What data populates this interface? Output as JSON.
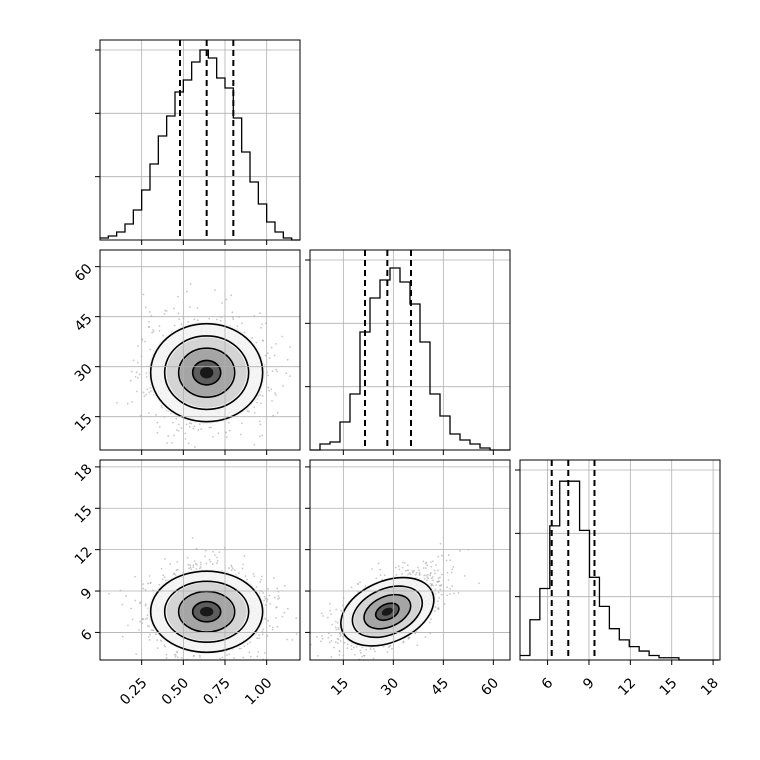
{
  "chart_data": {
    "type": "corner",
    "parameters": [
      {
        "index": 0,
        "range": [
          0.0,
          1.2
        ],
        "ticks": [
          0.25,
          0.5,
          0.75,
          1.0
        ],
        "tick_labels": [
          "0.25",
          "0.50",
          "0.75",
          "1.00"
        ],
        "quantiles": [
          0.48,
          0.64,
          0.8
        ],
        "center": 0.64,
        "sd": 0.16
      },
      {
        "index": 1,
        "range": [
          5,
          65
        ],
        "ticks": [
          15,
          30,
          45,
          60
        ],
        "tick_labels": [
          "15",
          "30",
          "45",
          "60"
        ],
        "quantiles": [
          21.5,
          28.2,
          35.3
        ],
        "center": 28.2,
        "sd": 7.0
      },
      {
        "index": 2,
        "range": [
          4,
          18.5
        ],
        "ticks": [
          6,
          9,
          12,
          15,
          18
        ],
        "tick_labels": [
          "6",
          "9",
          "12",
          "15",
          "18"
        ],
        "quantiles": [
          6.3,
          7.5,
          9.4
        ],
        "center": 7.5,
        "sd": 1.4
      }
    ],
    "histograms": [
      {
        "param": 0,
        "bin_edges": [
          0.0,
          0.05,
          0.1,
          0.15,
          0.2,
          0.25,
          0.3,
          0.35,
          0.4,
          0.45,
          0.5,
          0.55,
          0.6,
          0.65,
          0.7,
          0.75,
          0.8,
          0.85,
          0.9,
          0.95,
          1.0,
          1.05,
          1.1,
          1.15,
          1.2
        ],
        "counts": [
          1,
          2,
          4,
          8,
          15,
          25,
          38,
          52,
          62,
          74,
          80,
          89,
          95,
          91,
          81,
          76,
          61,
          44,
          29,
          18,
          9,
          4,
          1,
          0
        ],
        "ylim": [
          0,
          95
        ]
      },
      {
        "param": 1,
        "bin_edges": [
          5,
          8,
          11,
          14,
          17,
          20,
          23,
          26,
          29,
          32,
          35,
          38,
          41,
          44,
          47,
          50,
          53,
          56,
          59,
          62,
          65
        ],
        "counts": [
          0,
          3,
          4,
          14,
          28,
          59,
          76,
          85,
          91,
          84,
          73,
          54,
          28,
          17,
          8,
          5,
          3,
          1,
          0,
          0
        ],
        "ylim": [
          0,
          95
        ]
      },
      {
        "param": 2,
        "bin_edges": [
          4,
          4.72,
          5.44,
          6.16,
          6.88,
          7.6,
          8.32,
          9.04,
          9.76,
          10.48,
          11.2,
          11.92,
          12.64,
          13.36,
          14.08,
          14.8,
          15.52,
          16.24,
          16.96,
          17.68,
          18.4
        ],
        "counts": [
          2,
          18,
          32,
          60,
          80,
          80,
          58,
          37,
          24,
          14,
          9,
          6,
          4,
          2,
          1,
          1,
          0,
          0,
          0,
          0
        ],
        "ylim": [
          0,
          85
        ]
      }
    ],
    "pairs": [
      {
        "x": 0,
        "y": 1,
        "center": [
          0.64,
          28.2
        ],
        "spread": [
          0.16,
          7.0
        ],
        "rho": 0.0
      },
      {
        "x": 0,
        "y": 2,
        "center": [
          0.64,
          7.5
        ],
        "spread": [
          0.16,
          1.4
        ],
        "rho": 0.0
      },
      {
        "x": 1,
        "y": 2,
        "center": [
          28.2,
          7.5
        ],
        "spread": [
          7.0,
          1.4
        ],
        "rho": 0.6
      }
    ],
    "contour_levels_sigma": [
      0.5,
      1.0,
      1.5,
      2.0
    ],
    "grid": true,
    "colors": {
      "line": "#000000",
      "grid": "#b0b0b0",
      "points": "#9a9a9a",
      "background": "#ffffff"
    }
  }
}
